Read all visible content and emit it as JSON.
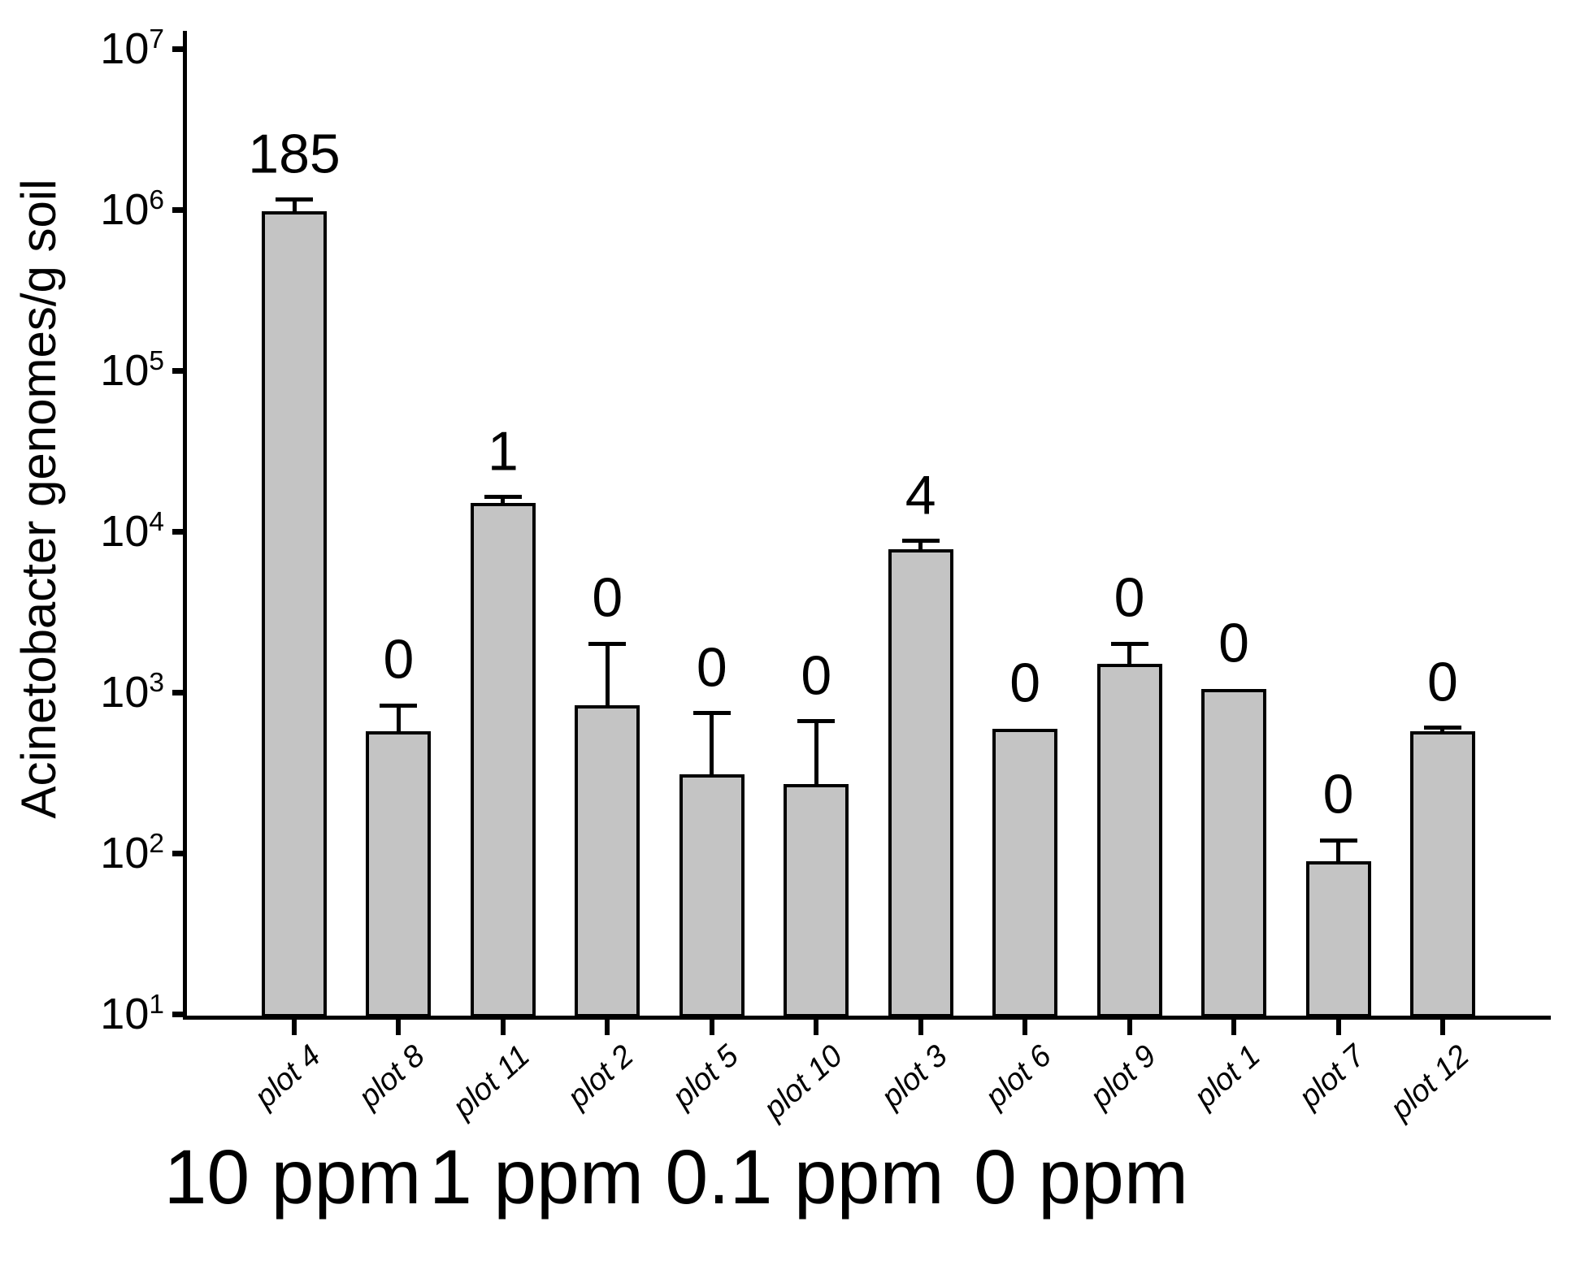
{
  "figure": {
    "background": "#ffffff",
    "bar_fill": "#c4c4c4",
    "bar_border": "#000000",
    "axis_color": "#000000",
    "text_color": "#000000"
  },
  "chart_data": {
    "type": "bar",
    "yscale": "log",
    "title": "",
    "xlabel": "",
    "ylabel": "Acinetobacter genomes/g soil",
    "ylim": [
      10,
      10000000
    ],
    "y_tick_base": "10",
    "y_tick_exponents": [
      1,
      2,
      3,
      4,
      5,
      6,
      7
    ],
    "grid": false,
    "legend": null,
    "categories": [
      "plot 4",
      "plot 8",
      "plot 11",
      "plot 2",
      "plot 5",
      "plot 10",
      "plot 3",
      "plot 6",
      "plot 9",
      "plot 1",
      "plot 7",
      "plot 12"
    ],
    "values": [
      980000,
      570,
      15000,
      830,
      310,
      270,
      7700,
      590,
      1500,
      1050,
      89,
      570
    ],
    "error_upper": [
      1150000,
      830,
      16300,
      2000,
      740,
      660,
      8700,
      null,
      2000,
      null,
      120,
      600
    ],
    "bar_labels": [
      "185",
      "0",
      "1",
      "0",
      "0",
      "0",
      "4",
      "0",
      "0",
      "0",
      "0",
      "0"
    ],
    "groups": [
      {
        "label": "10 ppm",
        "categories": [
          "plot 4",
          "plot 8",
          "plot 11"
        ]
      },
      {
        "label": "1 ppm",
        "categories": [
          "plot 2",
          "plot 5",
          "plot 10"
        ]
      },
      {
        "label": "0.1 ppm",
        "categories": [
          "plot 3",
          "plot 6",
          "plot 9"
        ]
      },
      {
        "label": "0 ppm",
        "categories": [
          "plot 1",
          "plot 7",
          "plot 12"
        ]
      }
    ]
  }
}
